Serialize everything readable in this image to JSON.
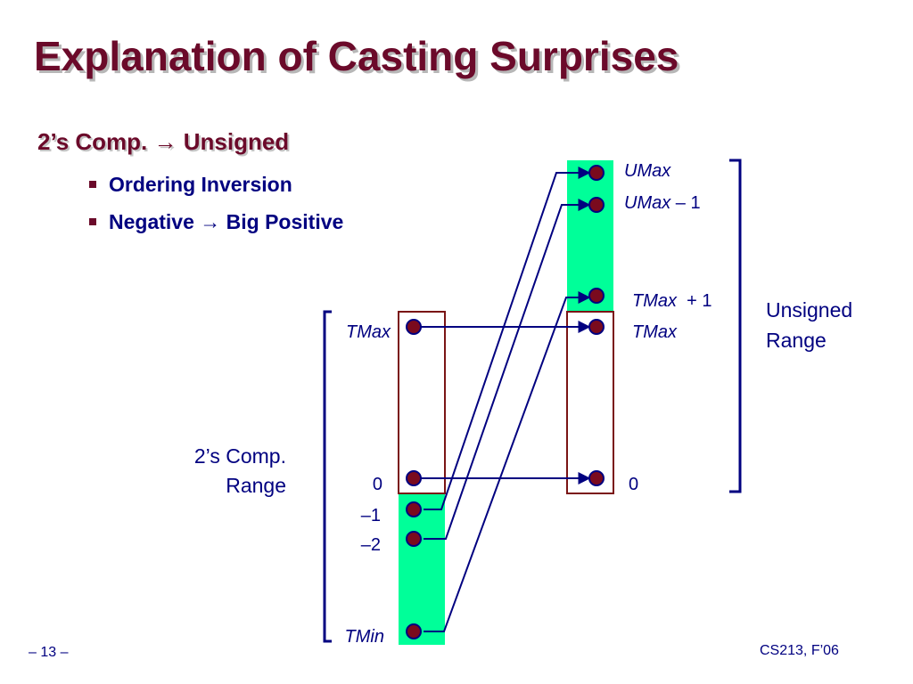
{
  "slide": {
    "title": "Explanation of Casting Surprises",
    "subheading": "2’s Comp. → Unsigned",
    "bullets": [
      "Ordering Inversion",
      "Negative → Big Positive"
    ],
    "page_number": "– 13 –",
    "course": "CS213, F’06"
  },
  "diagram": {
    "twos_comp_range_label": [
      "2’s Comp.",
      "Range"
    ],
    "unsigned_range_label": [
      "Unsigned",
      "Range"
    ],
    "left_labels": {
      "tmax": "TMax",
      "zero": "0",
      "neg1": "–1",
      "neg2": "–2",
      "tmin": "TMin"
    },
    "right_labels": {
      "umax": "UMax",
      "umax_minus_1_var": "UMax",
      "umax_minus_1_rest": " – 1",
      "tmax_plus_1_var": "TMax",
      "tmax_plus_1_rest": "  + 1",
      "tmax": "TMax",
      "zero": "0"
    },
    "colors": {
      "title": "#6b0a2a",
      "text": "#000080",
      "highlight": "#00ff99",
      "box": "#7a1515",
      "dot": "#7a0a1e",
      "dot_outline": "#000080",
      "bracket": "#000080"
    }
  }
}
